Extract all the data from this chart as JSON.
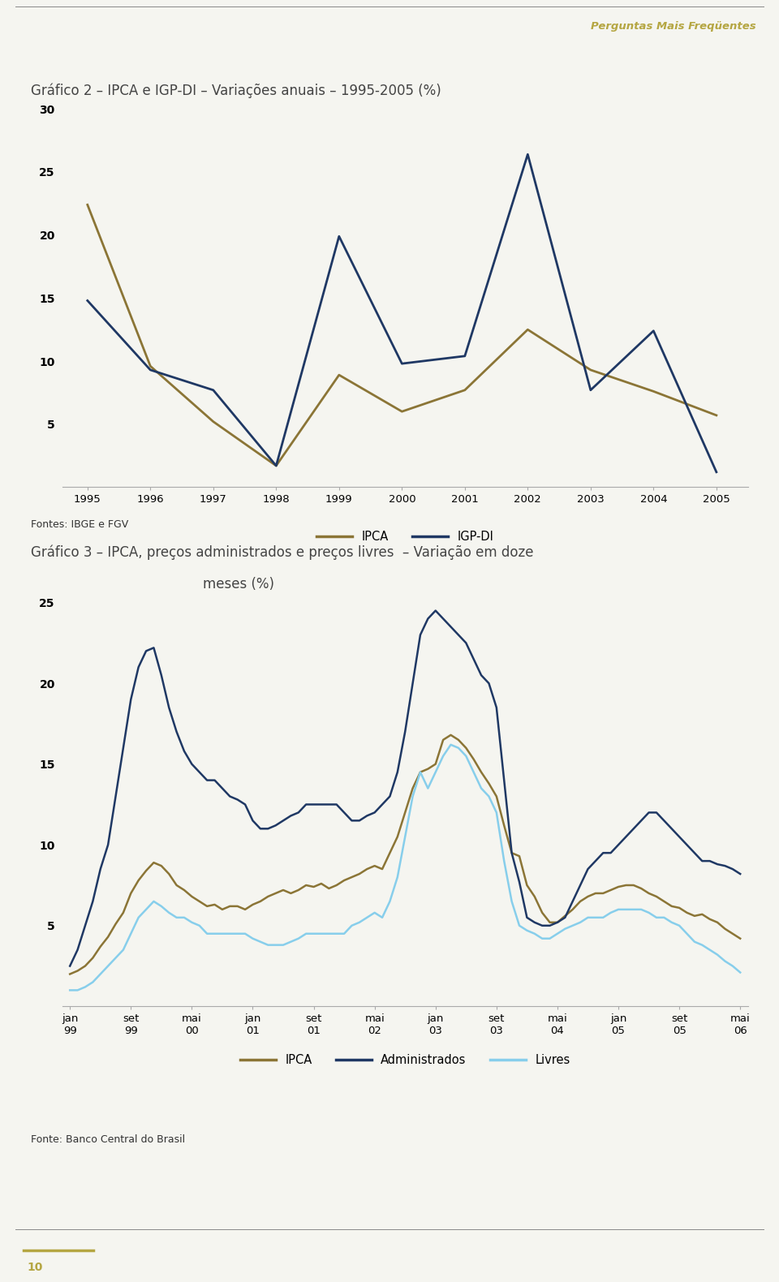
{
  "page_title": "Perguntas Mais Freqüentes",
  "page_title_color": "#b5a642",
  "bg_color": "#f5f5f0",
  "chart1": {
    "title": "Gráfico 2 – IPCA e IGP-DI – Variações anuais – 1995-2005 (%)",
    "title_fontsize": 12,
    "years": [
      1995,
      1996,
      1997,
      1998,
      1999,
      2000,
      2001,
      2002,
      2003,
      2004,
      2005
    ],
    "ipca": [
      22.4,
      9.6,
      5.2,
      1.7,
      8.9,
      6.0,
      7.7,
      12.5,
      9.3,
      7.6,
      5.7
    ],
    "igpdi": [
      14.8,
      9.3,
      7.7,
      1.7,
      19.9,
      9.8,
      10.4,
      26.4,
      7.7,
      12.4,
      1.2
    ],
    "ipca_color": "#8B7536",
    "igpdi_color": "#1F3864",
    "ylim": [
      0,
      30
    ],
    "yticks": [
      0,
      5,
      10,
      15,
      20,
      25,
      30
    ],
    "legend_ipca": "IPCA",
    "legend_igpdi": "IGP-DI",
    "source": "Fontes: IBGE e FGV"
  },
  "chart2": {
    "title_line1": "Gráfico 3 – IPCA, preços administrados e preços livres  – Variação em doze",
    "title_line2": "meses (%)",
    "title_fontsize": 12,
    "ylim": [
      0,
      25
    ],
    "yticks": [
      0,
      5,
      10,
      15,
      20,
      25
    ],
    "ipca_color": "#8B7536",
    "admin_color": "#1F3864",
    "livres_color": "#87CEEB",
    "legend_ipca": "IPCA",
    "legend_admin": "Administrados",
    "legend_livres": "Livres",
    "source": "Fonte: Banco Central do Brasil"
  },
  "footer_num": "10",
  "footer_color": "#b5a642"
}
